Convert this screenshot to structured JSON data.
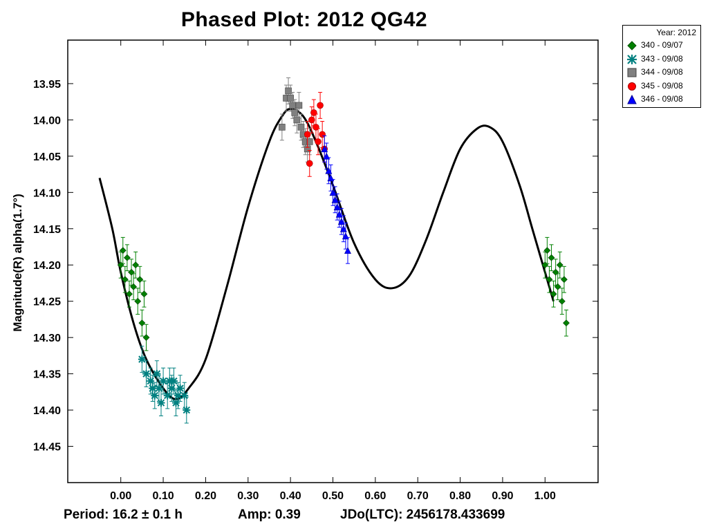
{
  "chart_data": {
    "type": "scatter",
    "title": "Phased Plot: 2012 QG42",
    "xlabel": "",
    "ylabel": "Magnitude(R) alpha(1.7°)",
    "xlim": [
      -0.125,
      1.125
    ],
    "ylim": [
      14.5,
      13.89
    ],
    "y_inverted": true,
    "x_ticks": [
      0.0,
      0.1,
      0.2,
      0.3,
      0.4,
      0.5,
      0.6,
      0.7,
      0.8,
      0.9,
      1.0
    ],
    "x_tick_labels": [
      "0.00",
      "0.10",
      "0.20",
      "0.30",
      "0.40",
      "0.50",
      "0.60",
      "0.70",
      "0.80",
      "0.90",
      "1.00"
    ],
    "y_ticks": [
      13.95,
      14.0,
      14.05,
      14.1,
      14.15,
      14.2,
      14.25,
      14.3,
      14.35,
      14.4,
      14.45
    ],
    "y_tick_labels": [
      "13.95",
      "14.00",
      "14.05",
      "14.10",
      "14.15",
      "14.20",
      "14.25",
      "14.30",
      "14.35",
      "14.40",
      "14.45"
    ],
    "fit_curve": {
      "name": "Fourier fit",
      "x": [
        -0.05,
        -0.02,
        0.0,
        0.03,
        0.06,
        0.1,
        0.13,
        0.16,
        0.2,
        0.25,
        0.3,
        0.35,
        0.38,
        0.4,
        0.43,
        0.46,
        0.5,
        0.55,
        0.6,
        0.64,
        0.68,
        0.72,
        0.76,
        0.8,
        0.84,
        0.87,
        0.9,
        0.94,
        0.97,
        1.0,
        1.02
      ],
      "y": [
        14.08,
        14.15,
        14.21,
        14.28,
        14.33,
        14.37,
        14.385,
        14.37,
        14.33,
        14.23,
        14.12,
        14.03,
        13.995,
        13.985,
        13.995,
        14.03,
        14.09,
        14.17,
        14.22,
        14.232,
        14.215,
        14.165,
        14.1,
        14.04,
        14.012,
        14.01,
        14.03,
        14.09,
        14.15,
        14.21,
        14.25
      ]
    },
    "series": [
      {
        "name": "340 - 09/07",
        "marker": "diamond",
        "color": "#008000",
        "x": [
          0.0,
          0.005,
          0.01,
          0.015,
          0.02,
          0.025,
          0.03,
          0.035,
          0.04,
          0.045,
          0.05,
          0.055,
          0.06,
          1.0,
          1.005,
          1.01,
          1.015,
          1.02,
          1.025,
          1.03,
          1.035,
          1.04,
          1.045,
          1.05
        ],
        "y": [
          14.2,
          14.18,
          14.22,
          14.19,
          14.24,
          14.21,
          14.23,
          14.2,
          14.25,
          14.22,
          14.28,
          14.24,
          14.3,
          14.2,
          14.18,
          14.22,
          14.19,
          14.24,
          14.21,
          14.23,
          14.2,
          14.25,
          14.22,
          14.28
        ]
      },
      {
        "name": "343 - 09/08",
        "marker": "asterisk",
        "color": "#008080",
        "x": [
          0.05,
          0.06,
          0.07,
          0.08,
          0.09,
          0.1,
          0.11,
          0.12,
          0.13,
          0.14,
          0.15,
          0.075,
          0.095,
          0.115,
          0.135,
          0.155,
          0.085,
          0.125
        ],
        "y": [
          14.33,
          14.35,
          14.36,
          14.38,
          14.37,
          14.36,
          14.38,
          14.37,
          14.39,
          14.37,
          14.38,
          14.37,
          14.39,
          14.36,
          14.38,
          14.4,
          14.35,
          14.36
        ]
      },
      {
        "name": "344 - 09/08",
        "marker": "square",
        "color": "#808080",
        "x": [
          0.38,
          0.39,
          0.395,
          0.4,
          0.405,
          0.41,
          0.415,
          0.42,
          0.425,
          0.43,
          0.435,
          0.44,
          0.445
        ],
        "y": [
          14.01,
          13.97,
          13.96,
          13.97,
          13.98,
          13.99,
          14.0,
          13.98,
          14.01,
          14.02,
          14.03,
          14.04,
          14.03
        ]
      },
      {
        "name": "345 - 09/08",
        "marker": "circle",
        "color": "#ff0000",
        "x": [
          0.44,
          0.445,
          0.45,
          0.455,
          0.46,
          0.465,
          0.47,
          0.475,
          0.48
        ],
        "y": [
          14.02,
          14.06,
          14.0,
          13.99,
          14.01,
          14.03,
          13.98,
          14.02,
          14.04
        ]
      },
      {
        "name": "346 - 09/08",
        "marker": "triangle",
        "color": "#0000ff",
        "x": [
          0.48,
          0.485,
          0.49,
          0.495,
          0.5,
          0.505,
          0.51,
          0.515,
          0.52,
          0.525,
          0.53,
          0.535
        ],
        "y": [
          14.04,
          14.05,
          14.07,
          14.08,
          14.1,
          14.11,
          14.12,
          14.13,
          14.14,
          14.15,
          14.16,
          14.18
        ]
      }
    ]
  },
  "legend": {
    "title": "Year: 2012",
    "items": [
      {
        "label": "340 - 09/07",
        "marker": "diamond",
        "color": "#008000"
      },
      {
        "label": "343 - 09/08",
        "marker": "asterisk",
        "color": "#008080"
      },
      {
        "label": "344 - 09/08",
        "marker": "square",
        "color": "#808080"
      },
      {
        "label": "345 - 09/08",
        "marker": "circle",
        "color": "#ff0000"
      },
      {
        "label": "346 - 09/08",
        "marker": "triangle",
        "color": "#0000ff"
      }
    ]
  },
  "footer": {
    "period": "Period: 16.2 ± 0.1 h",
    "amp": "Amp: 0.39",
    "jdo": "JDo(LTC): 2456178.433699"
  }
}
